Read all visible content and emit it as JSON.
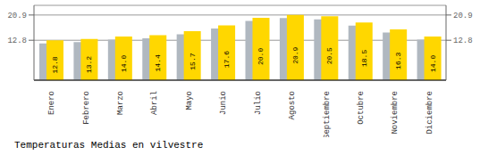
{
  "chart_data": {
    "type": "bar",
    "title": "Temperaturas Medias en vilvestre",
    "categories": [
      "Enero",
      "Febrero",
      "Marzo",
      "Abril",
      "Mayo",
      "Junio",
      "Julio",
      "Agosto",
      "Septiembre",
      "Octubre",
      "Noviembre",
      "Diciembre"
    ],
    "series": [
      {
        "color": "#B0B8C0",
        "values": [
          11.8,
          12.2,
          13.0,
          13.4,
          14.7,
          16.6,
          19.0,
          19.9,
          19.5,
          17.5,
          15.3,
          13.0
        ]
      },
      {
        "color": "#FFD700",
        "values": [
          12.8,
          13.2,
          14.0,
          14.4,
          15.7,
          17.6,
          20.0,
          20.9,
          20.5,
          18.5,
          16.3,
          14.0
        ],
        "data_labels": true,
        "value_labels": [
          "12.8",
          "13.2",
          "14.0",
          "14.4",
          "15.7",
          "17.6",
          "20.0",
          "20.9",
          "20.5",
          "18.5",
          "16.3",
          "14.0"
        ]
      }
    ],
    "ylim": [
      0.0,
      24.0
    ],
    "yticks": [
      12.8,
      20.9
    ],
    "y2lim": [
      0.0,
      24.0
    ],
    "y2ticks": [
      12.8,
      20.9
    ],
    "grid": true
  }
}
